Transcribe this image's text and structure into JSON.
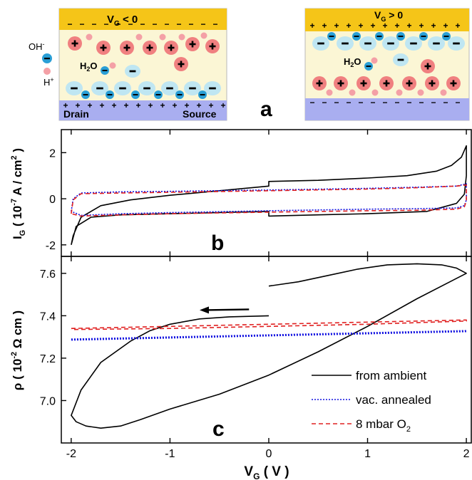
{
  "panel_a": {
    "label": "a",
    "left": {
      "gate_label": "V",
      "gate_sub": "G",
      "gate_rest": " < 0",
      "top_charge": "−",
      "bottom_charge": "+",
      "drain": "Drain",
      "source": "Source",
      "water": "H",
      "water_sub": "2",
      "water_rest": "O"
    },
    "right": {
      "gate_label": "V",
      "gate_sub": "G",
      "gate_rest": " > 0",
      "top_charge": "+",
      "bottom_charge": "−",
      "water": "H",
      "water_sub": "2",
      "water_rest": "O"
    },
    "legend": {
      "oh": "OH",
      "oh_sup": "-",
      "h": "H",
      "h_sup": "+"
    },
    "colors": {
      "gate": "#f5c518",
      "electrolyte": "#fbf6d5",
      "channel": "#a9aef0",
      "cation": "#f08080",
      "anion": "#bfe6f2",
      "oh_ion": "#2a9fd6",
      "h_ion": "#f4a0a6"
    }
  },
  "chart_data": [
    {
      "type": "line",
      "panel_label": "b",
      "ylabel_main": "I",
      "ylabel_sub": "G",
      "ylabel_rest": " ( 10",
      "ylabel_exp": "-7",
      "ylabel_unit": " A / cm",
      "ylabel_unit_exp": "2",
      "ylabel_close": " )",
      "xlim": [
        -2.1,
        2.05
      ],
      "ylim": [
        -2.5,
        3.0
      ],
      "yticks": [
        -2,
        0,
        2
      ],
      "ytick_labels": [
        "-2",
        "0",
        "2"
      ],
      "series": [
        {
          "key": "ambient",
          "color": "#000000",
          "dash": "",
          "x": [
            -2.0,
            -1.98,
            -1.9,
            -1.7,
            -1.4,
            -1.0,
            -0.5,
            0.0,
            0.0,
            0.5,
            1.0,
            1.4,
            1.7,
            1.85,
            1.95,
            2.0,
            2.0,
            1.98,
            1.9,
            1.6,
            1.0,
            0.5,
            0.0,
            0.0,
            -0.5,
            -1.0,
            -1.5,
            -1.8,
            -1.95,
            -2.0
          ],
          "y": [
            -2.0,
            -1.6,
            -0.8,
            -0.3,
            -0.05,
            0.15,
            0.35,
            0.55,
            0.75,
            0.8,
            0.9,
            1.0,
            1.2,
            1.45,
            1.8,
            2.3,
            1.0,
            0.2,
            -0.2,
            -0.55,
            -0.65,
            -0.7,
            -0.75,
            -0.55,
            -0.6,
            -0.65,
            -0.7,
            -0.8,
            -1.2,
            -2.0
          ]
        },
        {
          "key": "vac",
          "color": "#1010e0",
          "dash": "2 2",
          "x": [
            -2.0,
            -1.98,
            -1.9,
            -1.5,
            -1.0,
            0.0,
            1.0,
            1.5,
            1.9,
            2.0,
            2.0,
            1.98,
            1.9,
            1.5,
            1.0,
            0.0,
            -1.0,
            -1.5,
            -1.9,
            -2.0
          ],
          "y": [
            -0.55,
            0.0,
            0.25,
            0.3,
            0.32,
            0.38,
            0.45,
            0.5,
            0.55,
            0.65,
            -0.05,
            -0.3,
            -0.4,
            -0.43,
            -0.45,
            -0.52,
            -0.6,
            -0.65,
            -0.72,
            -0.55
          ]
        },
        {
          "key": "o2",
          "color": "#e02020",
          "dash": "6 4",
          "x": [
            -2.0,
            -1.98,
            -1.9,
            -1.5,
            -1.0,
            0.0,
            1.0,
            1.5,
            1.9,
            2.0,
            2.0,
            1.98,
            1.9,
            1.5,
            1.0,
            0.0,
            -1.0,
            -1.5,
            -1.9,
            -2.0
          ],
          "y": [
            -0.65,
            -0.05,
            0.22,
            0.25,
            0.28,
            0.35,
            0.42,
            0.48,
            0.55,
            0.6,
            -0.1,
            -0.35,
            -0.45,
            -0.5,
            -0.52,
            -0.58,
            -0.65,
            -0.7,
            -0.75,
            -0.65
          ]
        }
      ]
    },
    {
      "type": "line",
      "panel_label": "c",
      "ylabel_main": "ρ",
      "ylabel_rest": " ( 10",
      "ylabel_exp": "-2",
      "ylabel_unit": " Ω  cm )",
      "xlabel_main": "V",
      "xlabel_sub": "G",
      "xlabel_rest": " ( V )",
      "xlim": [
        -2.1,
        2.05
      ],
      "ylim": [
        6.8,
        7.68
      ],
      "xticks": [
        -2,
        -1,
        0,
        1,
        2
      ],
      "xtick_labels": [
        "-2",
        "-1",
        "0",
        "1",
        "2"
      ],
      "yticks": [
        7.0,
        7.2,
        7.4,
        7.6
      ],
      "ytick_labels": [
        "7.0",
        "7.2",
        "7.4",
        "7.6"
      ],
      "arrow": {
        "x_from": -0.2,
        "x_to": -0.7,
        "y": 7.43
      },
      "series": [
        {
          "key": "ambient",
          "name": "from ambient",
          "color": "#000000",
          "dash": "",
          "x": [
            0.0,
            0.3,
            0.6,
            0.9,
            1.2,
            1.5,
            1.75,
            1.9,
            2.0,
            1.5,
            1.0,
            0.5,
            0.0,
            -0.5,
            -1.0,
            -1.3,
            -1.5,
            -1.7,
            -1.85,
            -1.95,
            -2.0,
            -1.9,
            -1.7,
            -1.4,
            -1.2,
            -1.0,
            -0.7,
            -0.4,
            0.0
          ],
          "y": [
            7.54,
            7.56,
            7.59,
            7.62,
            7.64,
            7.645,
            7.64,
            7.625,
            7.6,
            7.48,
            7.35,
            7.23,
            7.12,
            7.03,
            6.96,
            6.91,
            6.88,
            6.87,
            6.88,
            6.9,
            6.93,
            7.05,
            7.18,
            7.28,
            7.33,
            7.36,
            7.385,
            7.395,
            7.4
          ]
        },
        {
          "key": "vac",
          "name": "vac. annealed",
          "color": "#1010e0",
          "dash": "2 2",
          "x": [
            -2.0,
            -1.0,
            0.0,
            1.0,
            2.0,
            2.0,
            1.0,
            0.0,
            -1.0,
            -2.0
          ],
          "y": [
            7.29,
            7.3,
            7.31,
            7.32,
            7.33,
            7.325,
            7.315,
            7.305,
            7.295,
            7.285
          ]
        },
        {
          "key": "o2",
          "name": "8 mbar O",
          "name_sub": "2",
          "color": "#e02020",
          "dash": "6 4",
          "x": [
            -2.0,
            -1.0,
            0.0,
            1.0,
            2.0,
            2.0,
            1.0,
            0.0,
            -1.0,
            -2.0
          ],
          "y": [
            7.34,
            7.35,
            7.36,
            7.37,
            7.38,
            7.375,
            7.36,
            7.35,
            7.34,
            7.335
          ]
        }
      ]
    }
  ]
}
